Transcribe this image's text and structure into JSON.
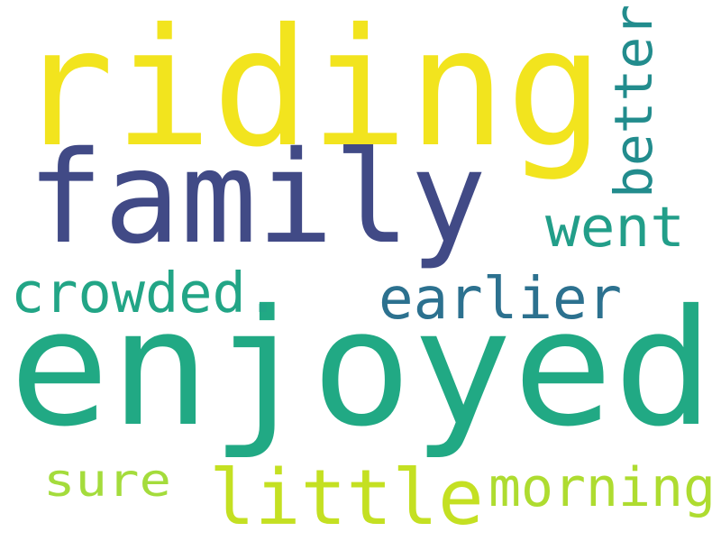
{
  "background": "#ffffff",
  "words": [
    {
      "text": "riding",
      "color": "#f2e41e"
    },
    {
      "text": "family",
      "color": "#414a86"
    },
    {
      "text": "enjoyed",
      "color": "#21a984"
    },
    {
      "text": "better",
      "color": "#228c8d"
    },
    {
      "text": "went",
      "color": "#229e89"
    },
    {
      "text": "crowded.",
      "color": "#22a586"
    },
    {
      "text": "earlier",
      "color": "#2c718f"
    },
    {
      "text": "sure",
      "color": "#a4dc3c"
    },
    {
      "text": "little",
      "color": "#c4e022"
    },
    {
      "text": "morning",
      "color": "#aedc30"
    }
  ]
}
